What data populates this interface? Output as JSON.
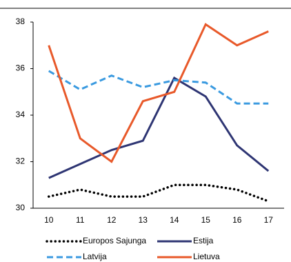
{
  "chart_data": {
    "type": "line",
    "categories": [
      "10",
      "11",
      "12",
      "13",
      "14",
      "15",
      "16",
      "17"
    ],
    "series": [
      {
        "name": "Europos Sajunga",
        "color": "#000000",
        "dash": "dotted",
        "values": [
          30.5,
          30.8,
          30.5,
          30.5,
          31.0,
          31.0,
          30.8,
          30.3
        ]
      },
      {
        "name": "Estija",
        "color": "#2e3573",
        "dash": "solid",
        "values": [
          31.3,
          31.9,
          32.5,
          32.9,
          35.6,
          34.8,
          32.7,
          31.6
        ]
      },
      {
        "name": "Latvija",
        "color": "#3a9ae0",
        "dash": "dashed",
        "values": [
          35.9,
          35.1,
          35.7,
          35.2,
          35.5,
          35.4,
          34.5,
          34.5
        ]
      },
      {
        "name": "Lietuva",
        "color": "#e8592a",
        "dash": "solid",
        "values": [
          37.0,
          33.0,
          32.0,
          34.6,
          35.0,
          37.9,
          37.0,
          37.6
        ]
      }
    ],
    "ylim": [
      30,
      38
    ],
    "yticks": [
      30,
      32,
      34,
      36,
      38
    ],
    "grid": false
  }
}
